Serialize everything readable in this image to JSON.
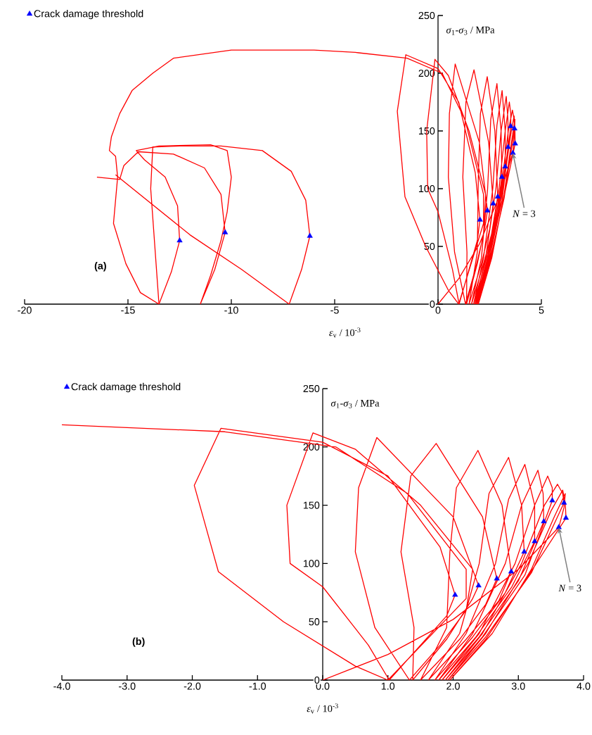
{
  "chart_data": [
    {
      "type": "line",
      "xlabel": "*ε*$_{v}$ / 10$^{-3}$",
      "ylabel": "*σ*$_{1}$-*σ*$_{3}$ / MPa",
      "xlim": [
        -20,
        5
      ],
      "ylim": [
        0,
        250
      ],
      "xticks": [
        -20,
        -15,
        -10,
        -5,
        0,
        5
      ],
      "yticks": [
        0,
        50,
        100,
        150,
        200,
        250
      ],
      "legend": "top left",
      "annotations": [
        "(a)",
        {
          "text": "*N* = 3",
          "x": 3.62,
          "y": 131
        }
      ],
      "series": [
        {
          "color": "#ff0000",
          "x": [
            0,
            1.0,
            2.0,
            3.0,
            3.62,
            3.7,
            3.72,
            3.55,
            3.2,
            2.6,
            1.95,
            2.5,
            3.1,
            3.73,
            3.72,
            3.68,
            3.5,
            3.15,
            2.5,
            1.92,
            2.5,
            3.2,
            3.7,
            3.68,
            3.6,
            3.4,
            3.05,
            2.45,
            1.88,
            2.45,
            3.1,
            3.52,
            3.52,
            3.45,
            3.25,
            2.95,
            2.4,
            1.83,
            2.4,
            3.0,
            3.39,
            3.38,
            3.3,
            3.05,
            2.8,
            2.3,
            1.78,
            2.35,
            2.9,
            3.25,
            3.25,
            3.1,
            2.85,
            2.65,
            2.2,
            1.72,
            2.3,
            2.8,
            3.09,
            3.05,
            2.85,
            2.55,
            2.4,
            2.1,
            1.62,
            2.2,
            2.7,
            2.89,
            2.75,
            2.38,
            2.05,
            1.95,
            1.9,
            1.5,
            2.1,
            2.5,
            2.67,
            2.45,
            1.74,
            1.35,
            1.2,
            1.4,
            1.38,
            1.9,
            2.3,
            2.39,
            2.0,
            0.83,
            0.55,
            0.5,
            0.8,
            1.33,
            1.8,
            2.2,
            2.3,
            1.5,
            0.5,
            -0.15,
            -0.55,
            -0.5,
            0,
            0.7,
            1.02,
            1.5,
            1.9,
            2.03,
            1.8,
            1.0,
            0,
            -1.56,
            -1.97,
            -1.6,
            -0.6,
            0.5,
            1.0,
            1.6,
            2.2,
            2.2,
            1.3,
            0.2,
            -1.5,
            -4,
            -6,
            -10,
            -12.8,
            -13.8,
            -14.8,
            -15.4,
            -15.8,
            -15.9,
            -15.6,
            -15.5,
            -15.7,
            -15.1,
            -14.4,
            -13.5,
            -12.9,
            -12.5,
            -12.6,
            -13.2,
            -14.2,
            -14.6,
            -13.5,
            -11,
            -10.2,
            -10.0,
            -10.2,
            -10.5,
            -11,
            -11.5,
            -10.8,
            -10.3,
            -10.5,
            -11.3,
            -12.8,
            -14.5,
            -15.2,
            -15.4,
            -16.5
          ],
          "values": [
            0,
            22,
            52,
            95,
            131,
            148,
            160,
            140,
            95,
            40,
            0,
            35,
            85,
            139,
            152,
            163,
            145,
            100,
            40,
            0,
            37,
            92,
            152,
            160,
            168,
            150,
            100,
            40,
            0,
            37,
            90,
            154,
            165,
            175,
            150,
            100,
            40,
            0,
            37,
            85,
            136,
            160,
            180,
            150,
            100,
            40,
            0,
            37,
            80,
            119,
            150,
            185,
            155,
            100,
            40,
            0,
            37,
            75,
            110,
            150,
            191,
            160,
            100,
            40,
            0,
            35,
            68,
            93,
            150,
            197,
            165,
            110,
            45,
            0,
            35,
            65,
            87,
            140,
            203,
            175,
            110,
            45,
            0,
            35,
            70,
            81,
            140,
            208,
            165,
            110,
            45,
            0,
            30,
            60,
            95,
            150,
            198,
            212,
            150,
            100,
            80,
            30,
            0,
            30,
            55,
            73,
            114,
            175,
            204,
            216,
            167,
            93,
            50,
            12,
            0,
            35,
            70,
            95,
            160,
            200,
            213,
            218,
            220,
            220,
            213,
            200,
            185,
            165,
            145,
            133,
            128,
            110,
            70,
            35,
            10,
            0,
            28,
            55,
            85,
            110,
            125,
            133,
            137,
            138,
            133,
            110,
            80,
            55,
            25,
            0,
            30,
            62,
            95,
            118,
            130,
            132,
            120,
            108,
            110
          ]
        },
        {
          "color": "#ff0000",
          "x": [
            -15.6,
            -12,
            -9.5,
            -7.2,
            -6.6,
            -6.2,
            -6.4,
            -7.1,
            -8.5,
            -10.5,
            -12.5,
            -13.8,
            -13.9,
            -13.7,
            -13.5
          ],
          "values": [
            112,
            60,
            30,
            0,
            30,
            59,
            90,
            115,
            133,
            137,
            137,
            136,
            100,
            50,
            0
          ]
        },
        {
          "type": "scatter",
          "name": "Crack damage threshold",
          "color": "#0000ff",
          "marker": "triangle",
          "x": [
            2.03,
            2.39,
            2.67,
            2.89,
            3.09,
            3.25,
            3.39,
            3.52,
            3.7,
            3.73,
            3.62,
            -12.5,
            -10.3,
            -6.2
          ],
          "values": [
            73,
            81,
            87,
            93,
            110,
            119,
            136,
            154,
            152,
            139,
            131,
            55,
            62,
            59
          ]
        }
      ]
    },
    {
      "type": "line",
      "xlabel": "*ε*$_{v}$ / 10$^{-3}$",
      "ylabel": "*σ*$_{1}$-*σ*$_{3}$ / MPa",
      "xlim": [
        -4,
        4
      ],
      "ylim": [
        0,
        250
      ],
      "xticks": [
        {
          "value": -4,
          "label": "-4.0"
        },
        {
          "value": -3,
          "label": "-3.0"
        },
        {
          "value": -2,
          "label": "-2.0"
        },
        {
          "value": -1,
          "label": "-1.0"
        },
        {
          "value": 0,
          "label": "0.0"
        },
        {
          "value": 1,
          "label": "1.0"
        },
        {
          "value": 2,
          "label": "2.0"
        },
        {
          "value": 3,
          "label": "3.0"
        },
        {
          "value": 4,
          "label": "4.0"
        }
      ],
      "yticks": [
        0,
        50,
        100,
        150,
        200,
        250
      ],
      "legend": "top left",
      "annotations": [
        "(b)",
        {
          "text": "*N* = 3",
          "x": 3.62,
          "y": 131
        }
      ],
      "series": [
        {
          "color": "#ff0000",
          "x": [
            0,
            1.0,
            2.0,
            3.0,
            3.62,
            3.7,
            3.72,
            3.55,
            3.2,
            2.6,
            1.95,
            2.5,
            3.1,
            3.73,
            3.72,
            3.68,
            3.5,
            3.15,
            2.5,
            1.92,
            2.5,
            3.2,
            3.7,
            3.68,
            3.6,
            3.4,
            3.05,
            2.45,
            1.88,
            2.45,
            3.1,
            3.52,
            3.52,
            3.45,
            3.25,
            2.95,
            2.4,
            1.83,
            2.4,
            3.0,
            3.39,
            3.38,
            3.3,
            3.05,
            2.8,
            2.3,
            1.78,
            2.35,
            2.9,
            3.25,
            3.25,
            3.1,
            2.85,
            2.65,
            2.2,
            1.72,
            2.3,
            2.8,
            3.09,
            3.05,
            2.85,
            2.55,
            2.4,
            2.1,
            1.62,
            2.2,
            2.7,
            2.89,
            2.75,
            2.38,
            2.05,
            1.95,
            1.9,
            1.5,
            2.1,
            2.5,
            2.67,
            2.45,
            1.74,
            1.35,
            1.2,
            1.4,
            1.38,
            1.9,
            2.3,
            2.39,
            2.0,
            0.83,
            0.55,
            0.5,
            0.8,
            1.33,
            1.8,
            2.2,
            2.3,
            1.5,
            0.5,
            -0.15,
            -0.55,
            -0.5,
            0,
            0.7,
            1.02,
            1.5,
            1.9,
            2.03,
            1.8,
            1.0,
            0,
            -1.56,
            -1.97,
            -1.6,
            -0.6,
            0.5,
            1.0,
            1.6,
            2.2,
            2.2,
            1.3,
            0.2,
            -1.5,
            -4.0
          ],
          "values": [
            0,
            22,
            52,
            95,
            131,
            148,
            160,
            140,
            95,
            40,
            0,
            35,
            85,
            139,
            152,
            163,
            145,
            100,
            40,
            0,
            37,
            92,
            152,
            160,
            168,
            150,
            100,
            40,
            0,
            37,
            90,
            154,
            165,
            175,
            150,
            100,
            40,
            0,
            37,
            85,
            136,
            160,
            180,
            150,
            100,
            40,
            0,
            37,
            80,
            119,
            150,
            185,
            155,
            100,
            40,
            0,
            37,
            75,
            110,
            150,
            191,
            160,
            100,
            40,
            0,
            35,
            68,
            93,
            150,
            197,
            165,
            110,
            45,
            0,
            35,
            65,
            87,
            140,
            203,
            175,
            110,
            45,
            0,
            35,
            70,
            81,
            140,
            208,
            165,
            110,
            45,
            0,
            30,
            60,
            95,
            150,
            198,
            212,
            150,
            100,
            80,
            30,
            0,
            30,
            55,
            73,
            114,
            175,
            204,
            216,
            167,
            93,
            50,
            12,
            0,
            35,
            70,
            95,
            160,
            200,
            213,
            219
          ]
        },
        {
          "type": "scatter",
          "name": "Crack damage threshold",
          "color": "#0000ff",
          "marker": "triangle",
          "x": [
            2.03,
            2.39,
            2.67,
            2.89,
            3.09,
            3.25,
            3.39,
            3.52,
            3.7,
            3.73,
            3.62
          ],
          "values": [
            73,
            81,
            87,
            93,
            110,
            119,
            136,
            154,
            152,
            139,
            131
          ]
        }
      ]
    }
  ]
}
